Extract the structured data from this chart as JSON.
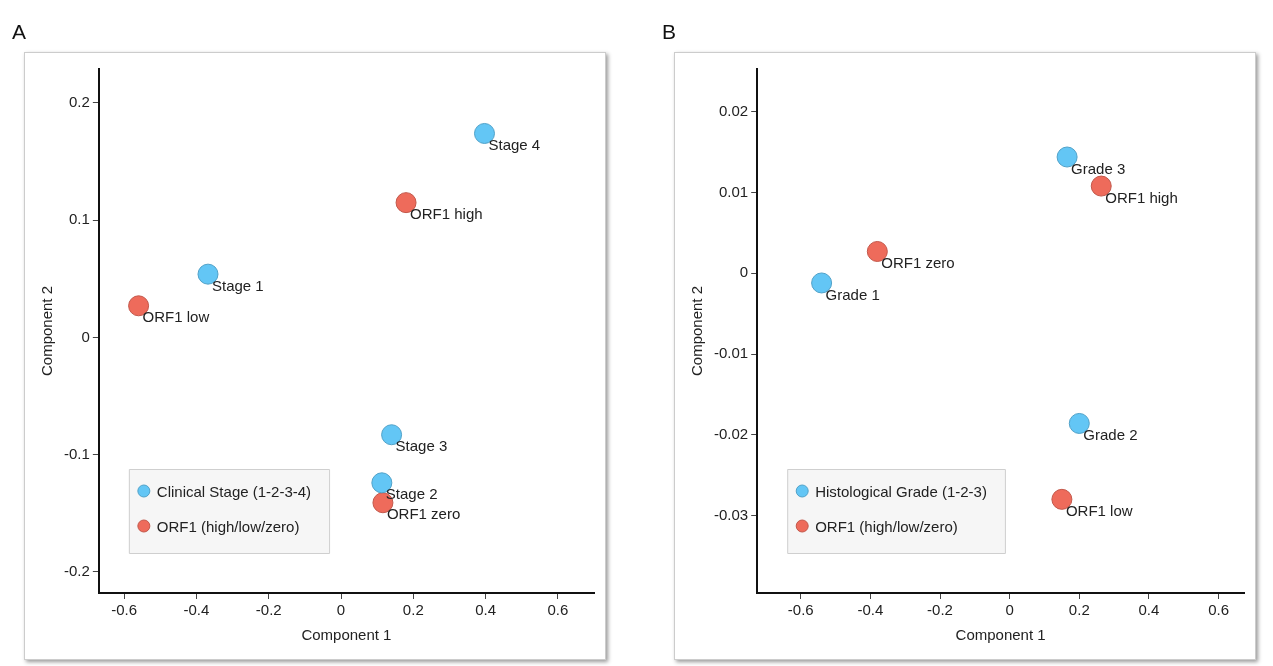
{
  "chart_data": [
    {
      "type": "scatter",
      "title": "A",
      "xlabel": "Component 1",
      "ylabel": "Component 2",
      "legend": "bottom left",
      "grid": false,
      "marker": "circle",
      "xlim": [
        -0.67,
        0.7
      ],
      "ylim": [
        -0.218,
        0.229
      ],
      "xticks": [
        -0.6,
        -0.4,
        -0.2,
        0,
        0.2,
        0.4,
        0.6
      ],
      "yticks": [
        -0.2,
        -0.1,
        0,
        0.1,
        0.2
      ],
      "series": [
        {
          "name": "Clinical Stage (1-2-3-4)",
          "color": "#63c6f5",
          "x": [
            -0.368,
            0.113,
            0.14,
            0.397
          ],
          "values": [
            0.054,
            -0.124,
            -0.083,
            0.174
          ]
        },
        {
          "name": "ORF1 (high/low/zero)",
          "color": "#ee6b5b",
          "x": [
            0.18,
            -0.56,
            0.116
          ],
          "values": [
            0.115,
            0.027,
            -0.141
          ]
        }
      ],
      "annotations": [
        {
          "text": "Stage 1",
          "x": -0.368,
          "y": 0.054
        },
        {
          "text": "Stage 2",
          "x": 0.113,
          "y": -0.124
        },
        {
          "text": "Stage 3",
          "x": 0.14,
          "y": -0.083
        },
        {
          "text": "Stage 4",
          "x": 0.397,
          "y": 0.174
        },
        {
          "text": "ORF1 high",
          "x": 0.18,
          "y": 0.115
        },
        {
          "text": "ORF1 low",
          "x": -0.56,
          "y": 0.027
        },
        {
          "text": "ORF1 zero",
          "x": 0.116,
          "y": -0.141
        }
      ]
    },
    {
      "type": "scatter",
      "title": "B",
      "xlabel": "Component 1",
      "ylabel": "Component 2",
      "legend": "bottom left",
      "grid": false,
      "marker": "circle",
      "xlim": [
        -0.725,
        0.673
      ],
      "ylim": [
        -0.0396,
        0.0253
      ],
      "xticks": [
        -0.6,
        -0.4,
        -0.2,
        0,
        0.2,
        0.4,
        0.6
      ],
      "yticks": [
        -0.03,
        -0.02,
        -0.01,
        0,
        0.01,
        0.02
      ],
      "series": [
        {
          "name": "Histological Grade (1-2-3)",
          "color": "#63c6f5",
          "x": [
            -0.54,
            0.2,
            0.165
          ],
          "values": [
            -0.0012,
            -0.0186,
            0.0144
          ]
        },
        {
          "name": "ORF1 (high/low/zero)",
          "color": "#ee6b5b",
          "x": [
            0.263,
            0.15,
            -0.38
          ],
          "values": [
            0.0108,
            -0.028,
            0.0027
          ]
        }
      ],
      "annotations": [
        {
          "text": "Grade 1",
          "x": -0.54,
          "y": -0.0012
        },
        {
          "text": "Grade 2",
          "x": 0.2,
          "y": -0.0186
        },
        {
          "text": "Grade 3",
          "x": 0.165,
          "y": 0.0144
        },
        {
          "text": "ORF1 high",
          "x": 0.263,
          "y": 0.0108
        },
        {
          "text": "ORF1 low",
          "x": 0.15,
          "y": -0.028
        },
        {
          "text": "ORF1 zero",
          "x": -0.38,
          "y": 0.0027
        }
      ]
    }
  ]
}
